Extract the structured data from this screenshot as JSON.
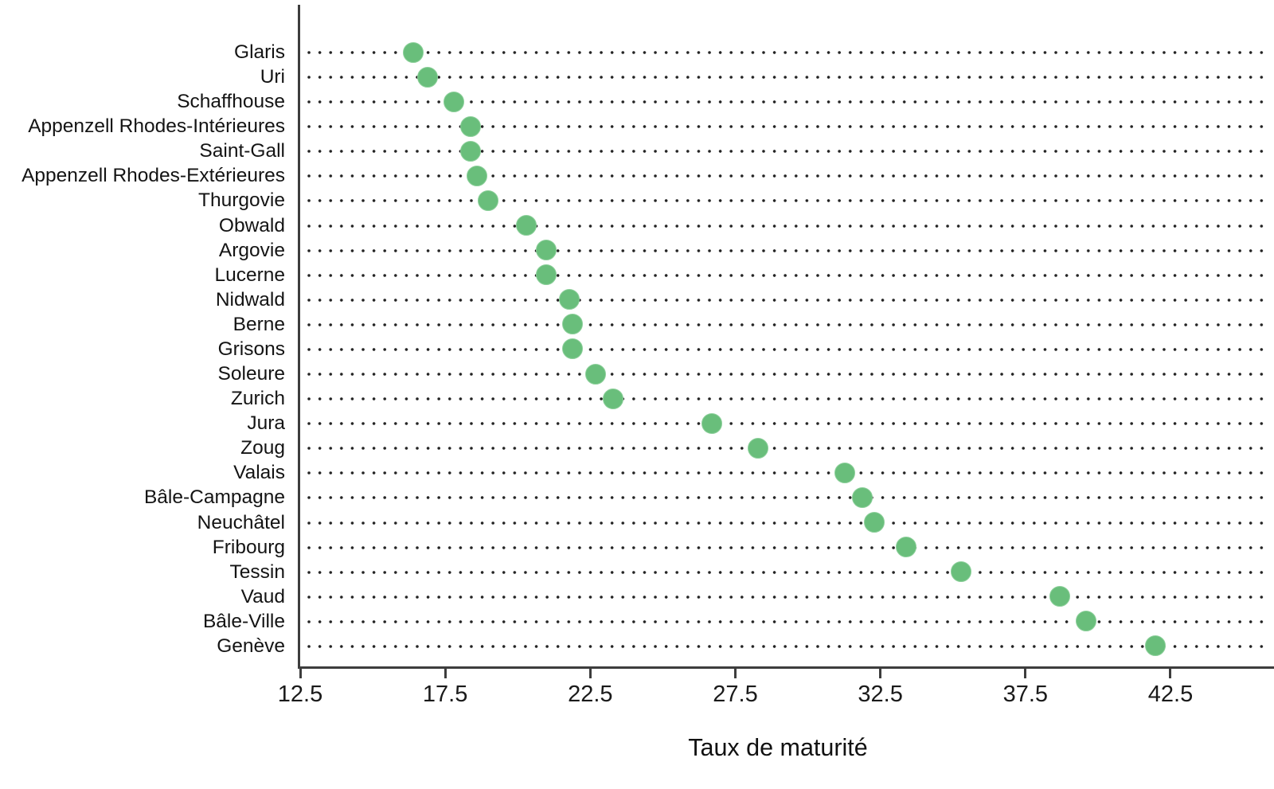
{
  "chart_data": {
    "type": "scatter",
    "subtype": "horizontal-dot-plot",
    "title": "",
    "xlabel": "Taux de maturité",
    "ylabel": "",
    "x_ticks": [
      12.5,
      17.5,
      22.5,
      27.5,
      32.5,
      37.5,
      42.5
    ],
    "xlim": [
      12.5,
      45.9
    ],
    "grid": "dotted horizontal leader lines per category",
    "legend": "none",
    "sort_order": "ascending top to bottom",
    "dot_color": "#69be7b",
    "dot_edge_color": "#8ccf9a",
    "text_color": "#141414",
    "axis_color": "#3d3d3d",
    "categories": [
      "Glaris",
      "Uri",
      "Schaffhouse",
      "Appenzell Rhodes-Intérieures",
      "Saint-Gall",
      "Appenzell Rhodes-Extérieures",
      "Thurgovie",
      "Obwald",
      "Argovie",
      "Lucerne",
      "Nidwald",
      "Berne",
      "Grisons",
      "Soleure",
      "Zurich",
      "Jura",
      "Zoug",
      "Valais",
      "Bâle-Campagne",
      "Neuchâtel",
      "Fribourg",
      "Tessin",
      "Vaud",
      "Bâle-Ville",
      "Genève"
    ],
    "values": [
      16.4,
      16.9,
      17.8,
      18.4,
      18.4,
      18.6,
      19.0,
      20.3,
      21.0,
      21.0,
      21.8,
      21.9,
      21.9,
      22.7,
      23.3,
      26.7,
      28.3,
      31.3,
      31.9,
      32.3,
      33.4,
      35.3,
      38.7,
      39.6,
      42.0
    ]
  }
}
